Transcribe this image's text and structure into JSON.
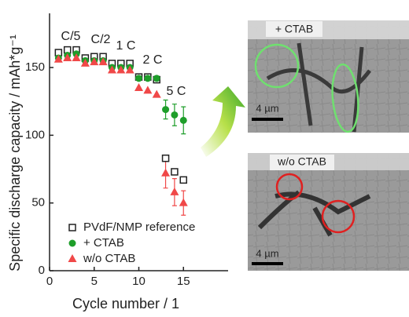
{
  "chart_data": {
    "type": "scatter",
    "xlabel": "Cycle number / 1",
    "ylabel": "Specific discharge capacity / mAh*g⁻¹",
    "xlim": [
      0,
      20
    ],
    "xticks": [
      0,
      5,
      10,
      15
    ],
    "ylim": [
      0,
      190
    ],
    "yticks": [
      0,
      50,
      100,
      150
    ],
    "legend": "lower left",
    "annotations": [
      "C/5",
      "C/2",
      "1 C",
      "2 C",
      "5 C"
    ],
    "series": [
      {
        "name": "PVdF/NMP reference",
        "color": "#222222",
        "marker": "square-open",
        "x": [
          1,
          2,
          3,
          4,
          5,
          6,
          7,
          8,
          9,
          10,
          11,
          12,
          13,
          14,
          15
        ],
        "values": [
          161,
          163,
          163,
          157,
          158,
          158,
          153,
          153,
          153,
          143,
          143,
          141,
          83,
          73,
          67
        ],
        "errors": [
          null,
          null,
          null,
          null,
          null,
          null,
          null,
          null,
          null,
          null,
          null,
          null,
          null,
          null,
          null
        ]
      },
      {
        "name": "+ CTAB",
        "color": "#1e9e2a",
        "marker": "circle",
        "x": [
          1,
          2,
          3,
          4,
          5,
          6,
          7,
          8,
          9,
          10,
          11,
          12,
          13,
          14,
          15
        ],
        "values": [
          157,
          159,
          160,
          155,
          155,
          155,
          150,
          150,
          150,
          142,
          142,
          142,
          119,
          115,
          111
        ],
        "errors": [
          null,
          null,
          null,
          null,
          null,
          null,
          null,
          null,
          null,
          null,
          null,
          null,
          7,
          8,
          10
        ]
      },
      {
        "name": "w/o CTAB",
        "color": "#f04848",
        "marker": "triangle",
        "x": [
          1,
          2,
          3,
          4,
          5,
          6,
          7,
          8,
          9,
          10,
          11,
          12,
          13,
          14,
          15
        ],
        "values": [
          156,
          157,
          157,
          153,
          154,
          154,
          148,
          148,
          148,
          135,
          133,
          130,
          72,
          58,
          50
        ],
        "errors": [
          null,
          null,
          null,
          null,
          null,
          null,
          null,
          null,
          null,
          null,
          null,
          null,
          11,
          10,
          9
        ]
      }
    ]
  },
  "insets": [
    {
      "label": "+ CTAB",
      "scale": "4 µm"
    },
    {
      "label": "w/o CTAB",
      "scale": "4 µm"
    }
  ]
}
